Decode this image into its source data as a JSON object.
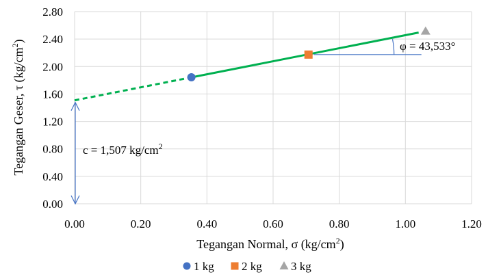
{
  "chart_data": {
    "type": "scatter",
    "xlabel_main": "Tegangan Normal, σ (kg/cm",
    "xlabel_sup": "2",
    "xlabel_end": ")",
    "ylabel_main": "Tegangan Geser, τ (kg/cm",
    "ylabel_sup": "2",
    "ylabel_end": ")",
    "xlim": [
      0,
      1.2
    ],
    "ylim": [
      0,
      2.8
    ],
    "x_ticks": [
      0,
      0.2,
      0.4,
      0.6,
      0.8,
      1.0,
      1.2
    ],
    "x_tick_labels": [
      "0.00",
      "0.20",
      "0.40",
      "0.60",
      "0.80",
      "1.00",
      "1.20"
    ],
    "y_ticks": [
      0,
      0.4,
      0.8,
      1.2,
      1.6,
      2.0,
      2.4,
      2.8
    ],
    "y_tick_labels": [
      "0.00",
      "0.40",
      "0.80",
      "1.20",
      "1.60",
      "2.00",
      "2.40",
      "2.80"
    ],
    "grid": true,
    "legend_position": "bottom",
    "series": [
      {
        "name": "1 kg",
        "marker": "circle",
        "color": "#4472C4",
        "x": [
          0.353
        ],
        "y": [
          1.843
        ]
      },
      {
        "name": "2 kg",
        "marker": "square",
        "color": "#ED7D31",
        "x": [
          0.707
        ],
        "y": [
          2.174
        ]
      },
      {
        "name": "3 kg",
        "marker": "triangle",
        "color": "#A5A5A5",
        "x": [
          1.061
        ],
        "y": [
          2.515
        ]
      }
    ],
    "fit_line": {
      "color": "#00B050",
      "intercept": 1.507,
      "slope": 0.95,
      "dashed_range": [
        0,
        0.353
      ],
      "solid_range": [
        0.353,
        1.04
      ]
    },
    "annotations": {
      "cohesion_main": "c = 1,507 kg/cm",
      "cohesion_sup": "2",
      "phi": "φ = 43,533°"
    },
    "annotation_color": "#4472C4"
  }
}
